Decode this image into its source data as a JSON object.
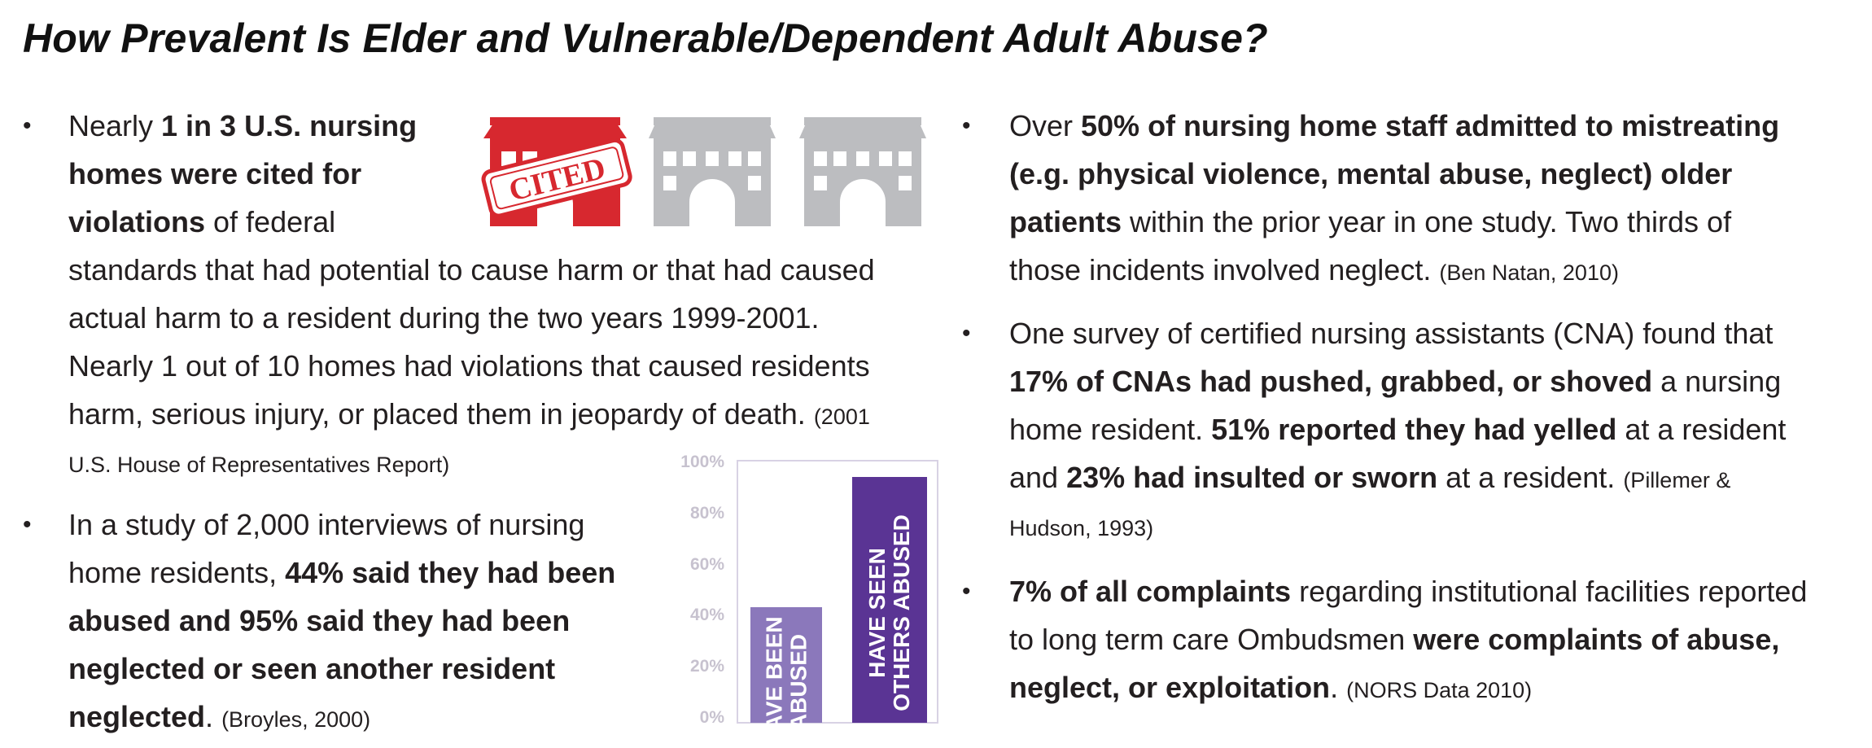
{
  "title": "How Prevalent Is Elder and Vulnerable/Dependent Adult Abuse?",
  "bullet_glyph": "•",
  "left": {
    "p1": {
      "pre": "Nearly ",
      "b1": "1 in 3 U.S. nursing",
      "b2": "homes were cited for",
      "b3": "violations",
      "t3": " of federal",
      "l4": "standards that had potential to cause harm or that had caused",
      "l5": "actual harm to a resident during the two years 1999-2001.",
      "l6": "Nearly 1 out of 10 homes had violations that caused residents",
      "l7": "harm, serious injury, or placed them in jeopardy of death. ",
      "cite7": "(2001",
      "cite8": "U.S. House of Representatives Report)"
    },
    "p2": {
      "l1": "In a study of 2,000 interviews of nursing",
      "l2pre": "home residents, ",
      "l2b": "44% said they had been",
      "l3": "abused and 95% said they had been",
      "l4": "neglected or seen another resident",
      "l5b": "neglected",
      "l5t": ". ",
      "cite": "(Broyles, 2000)"
    }
  },
  "stamp_text": "CITED",
  "colors": {
    "red": "#d7282f",
    "grey": "#bcbdc0",
    "bar_light": "#8b78bb",
    "bar_dark": "#5a3494"
  },
  "chart_data": {
    "type": "bar",
    "categories": [
      "HAVE BEEN ABUSED",
      "HAVE SEEN OTHERS ABUSED"
    ],
    "category_lines": [
      [
        "HAVE BEEN",
        "ABUSED"
      ],
      [
        "HAVE SEEN",
        "OTHERS ABUSED"
      ]
    ],
    "values": [
      44,
      95
    ],
    "ylim": [
      0,
      100
    ],
    "yticks": [
      "100%",
      "80%",
      "60%",
      "40%",
      "20%",
      "0%"
    ],
    "ytick_values": [
      100,
      80,
      60,
      40,
      20,
      0
    ]
  },
  "right": {
    "p1": {
      "pre": "Over ",
      "b1": "50% of nursing home staff admitted to mistreating",
      "b2": "(e.g. physical violence, mental abuse, neglect) older",
      "b3": "patients",
      "t3": " within the prior year in one study. Two thirds of",
      "l4": "those incidents involved neglect. ",
      "cite": "(Ben Natan, 2010)"
    },
    "p2": {
      "l1": "One survey of certified nursing assistants (CNA) found that",
      "l2b": "17% of CNAs had pushed, grabbed, or shoved",
      "l2t": " a nursing",
      "l3t": "home resident. ",
      "l3b": "51% reported they had yelled",
      "l3t2": " at a resident",
      "l4t": "and ",
      "l4b": "23% had insulted or sworn",
      "l4t2": " at a resident. ",
      "l4cite": "(Pillemer &",
      "l5cite": "Hudson, 1993)"
    },
    "p3": {
      "l1b": "7% of all complaints",
      "l1t": " regarding institutional facilities reported",
      "l2t": "to long term care Ombudsmen ",
      "l2b": "were complaints of abuse,",
      "l3b": "neglect, or exploitation",
      "l3t": ". ",
      "cite": "(NORS Data 2010)"
    }
  }
}
